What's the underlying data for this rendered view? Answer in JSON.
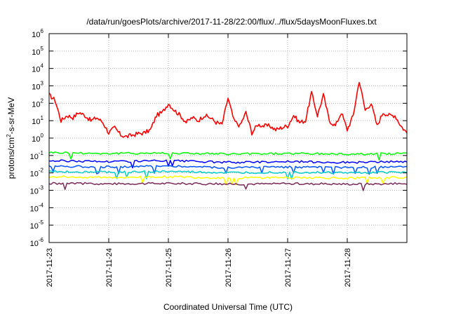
{
  "chart_data": {
    "type": "line",
    "title": "/data/run/goesPlots/archive/2017-11-28/22:00/flux/../flux/5daysMoonFluxes.txt",
    "xlabel": "Coordinated Universal Time (UTC)",
    "ylabel": {
      "pre": "protons/cm",
      "sup": "2",
      "post": "-s-sr-MeV"
    },
    "y_scale": "log",
    "ylim": [
      1e-06,
      1000000.0
    ],
    "y_ticks": [
      {
        "base": "10",
        "exp": "-6",
        "value": 1e-06
      },
      {
        "base": "10",
        "exp": "-5",
        "value": 1e-05
      },
      {
        "base": "10",
        "exp": "-4",
        "value": 0.0001
      },
      {
        "base": "10",
        "exp": "-3",
        "value": 0.001
      },
      {
        "base": "10",
        "exp": "-2",
        "value": 0.01
      },
      {
        "base": "10",
        "exp": "-1",
        "value": 0.1
      },
      {
        "base": "10",
        "exp": "0",
        "value": 1
      },
      {
        "base": "10",
        "exp": "1",
        "value": 10
      },
      {
        "base": "10",
        "exp": "2",
        "value": 100
      },
      {
        "base": "10",
        "exp": "3",
        "value": 1000
      },
      {
        "base": "10",
        "exp": "4",
        "value": 10000
      },
      {
        "base": "10",
        "exp": "5",
        "value": 100000
      },
      {
        "base": "10",
        "exp": "6",
        "value": 1000000
      }
    ],
    "xlim": [
      "2017-11-23",
      "2017-11-29"
    ],
    "x_tick_labels": [
      "2017-11-23",
      "2017-11-24",
      "2017-11-25",
      "2017-11-26",
      "2017-11-27",
      "2017-11-28"
    ],
    "grid": true,
    "legend": "none",
    "series": [
      {
        "color": "#ff0000",
        "day_offsets": [
          0,
          0.1,
          0.2,
          0.3,
          0.4,
          0.5,
          0.6,
          0.7,
          0.8,
          0.9,
          1.0,
          1.1,
          1.2,
          1.3,
          1.4,
          1.5,
          1.6,
          1.7,
          1.8,
          1.9,
          2.0,
          2.1,
          2.2,
          2.3,
          2.4,
          2.5,
          2.6,
          2.7,
          2.8,
          2.9,
          3.0,
          3.1,
          3.2,
          3.3,
          3.4,
          3.5,
          3.6,
          3.7,
          3.8,
          3.9,
          4.0,
          4.1,
          4.2,
          4.3,
          4.4,
          4.5,
          4.6,
          4.7,
          4.8,
          4.9,
          5.0,
          5.1,
          5.2,
          5.3,
          5.4,
          5.5,
          5.6,
          5.7,
          5.8,
          5.9,
          6.0
        ],
        "values": [
          300,
          150,
          10,
          20,
          15,
          30,
          20,
          10,
          15,
          8,
          2,
          4,
          1.5,
          1.2,
          1.5,
          1.8,
          2,
          3,
          20,
          30,
          100,
          40,
          20,
          8,
          15,
          10,
          20,
          15,
          8,
          6,
          200,
          10,
          5,
          30,
          2,
          6,
          5,
          5,
          3,
          4,
          5,
          20,
          8,
          10,
          400,
          20,
          300,
          10,
          5,
          30,
          3,
          20,
          2000,
          40,
          100,
          5,
          30,
          20,
          20,
          5,
          2
        ]
      },
      {
        "color": "#00ff00",
        "day_offsets": [
          0,
          1,
          2,
          3,
          4,
          5,
          6
        ],
        "values": [
          0.15,
          0.13,
          0.14,
          0.12,
          0.13,
          0.12,
          0.13
        ]
      },
      {
        "color": "#0000ff",
        "day_offsets": [
          0,
          1,
          2,
          3,
          4,
          5,
          6
        ],
        "values": [
          0.05,
          0.045,
          0.05,
          0.04,
          0.045,
          0.04,
          0.045
        ]
      },
      {
        "color": "#0055ff",
        "day_offsets": [
          0,
          1,
          2,
          3,
          4,
          5,
          6
        ],
        "values": [
          0.025,
          0.022,
          0.025,
          0.02,
          0.022,
          0.02,
          0.022
        ]
      },
      {
        "color": "#00cccc",
        "day_offsets": [
          0,
          1,
          2,
          3,
          4,
          5,
          6
        ],
        "values": [
          0.012,
          0.011,
          0.012,
          0.01,
          0.011,
          0.01,
          0.011
        ]
      },
      {
        "color": "#ffff00",
        "day_offsets": [
          0,
          1,
          2,
          3,
          4,
          5,
          6
        ],
        "values": [
          0.006,
          0.0055,
          0.006,
          0.005,
          0.0055,
          0.005,
          0.0055
        ]
      },
      {
        "color": "#7a2a5a",
        "day_offsets": [
          0,
          1,
          2,
          3,
          4,
          5,
          6
        ],
        "values": [
          0.0025,
          0.0024,
          0.0025,
          0.0023,
          0.0024,
          0.0023,
          0.0024
        ]
      }
    ]
  }
}
